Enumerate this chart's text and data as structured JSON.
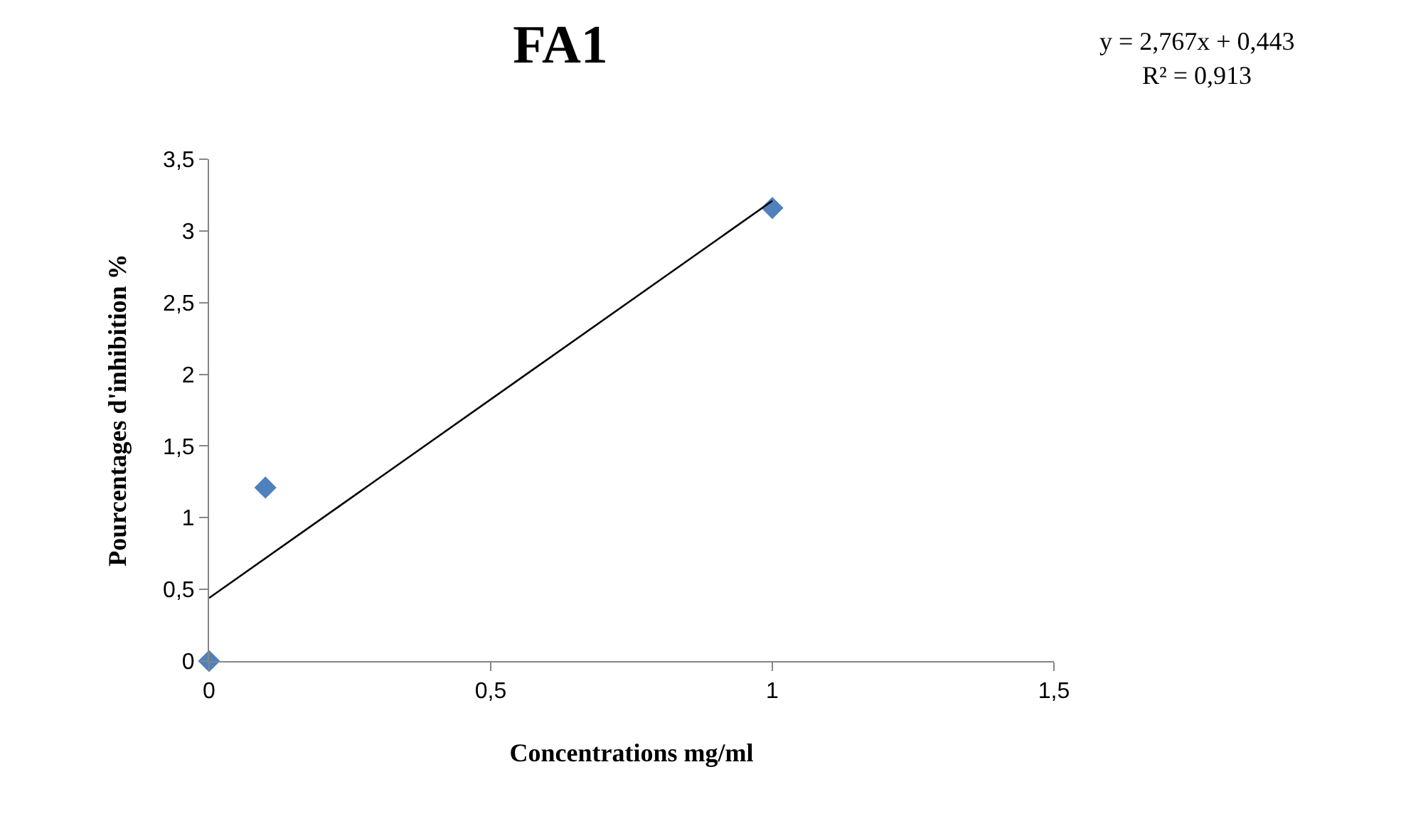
{
  "chart_data": {
    "type": "scatter",
    "title": "FA1",
    "xlabel": "Concentrations mg/ml",
    "ylabel": "Pourcentages d'inhibition %",
    "annotations": [
      "y = 2,767x + 0,443",
      "R² = 0,913"
    ],
    "series": [
      {
        "color": "#4f81bd",
        "x": [
          0,
          0.1,
          1
        ],
        "values": [
          0,
          1.21,
          3.16
        ]
      },
      {
        "type": "line",
        "color": "#000000",
        "x": [
          0,
          1
        ],
        "values": [
          0.44,
          3.21
        ],
        "marker": "none",
        "line_style": "solid"
      }
    ],
    "xlim": [
      0,
      1.5
    ],
    "xticks": [
      0,
      {
        "value": 0.5,
        "label": "0,5"
      },
      1,
      {
        "value": 1.5,
        "label": "1,5"
      }
    ],
    "ylim": [
      0,
      3.5
    ],
    "yticks": [
      0,
      {
        "value": 0.5,
        "label": "0,5"
      },
      1,
      {
        "value": 1.5,
        "label": "1,5"
      },
      2,
      {
        "value": 2.5,
        "label": "2,5"
      },
      3,
      {
        "value": 3.5,
        "label": "3,5"
      }
    ],
    "marker": "diamond"
  }
}
